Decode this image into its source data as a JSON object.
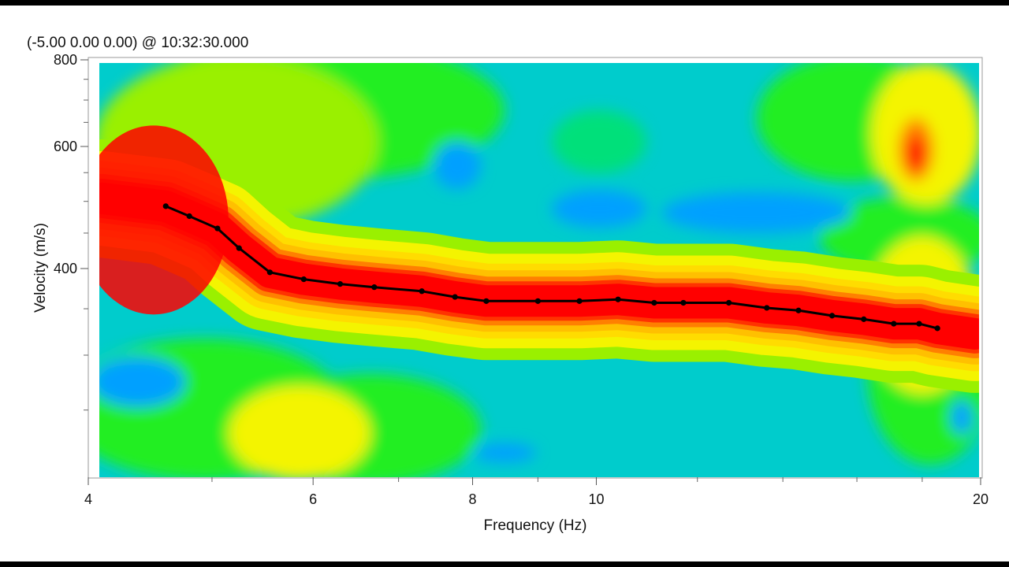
{
  "header": {
    "readout": "(-5.00 0.00 0.00) @ 10:32:30.000"
  },
  "chart_data": {
    "type": "heatmap",
    "subtype": "dispersion-image-with-picked-curve",
    "xlabel": "Frequency (Hz)",
    "ylabel": "Velocity (m/s)",
    "x_scale": "log",
    "y_scale": "log",
    "xlim": [
      4,
      20
    ],
    "ylim": [
      200,
      800
    ],
    "x_ticks": [
      {
        "value": 4,
        "label": "4"
      },
      {
        "value": 6,
        "label": "6"
      },
      {
        "value": 8,
        "label": "8"
      },
      {
        "value": 10,
        "label": "10"
      },
      {
        "value": 20,
        "label": "20"
      }
    ],
    "y_ticks": [
      {
        "value": 400,
        "label": "400"
      },
      {
        "value": 600,
        "label": "600"
      },
      {
        "value": 800,
        "label": "800"
      }
    ],
    "colormap": [
      "#00a0ff",
      "#00cccc",
      "#00e07a",
      "#22ee22",
      "#9af000",
      "#f4f400",
      "#ffc000",
      "#ff8000",
      "#ff3300",
      "#ff0000"
    ],
    "high_energy_color": "#ff0000",
    "low_energy_color": "#00a0ff",
    "picked_curve": {
      "color": "#000000",
      "points": [
        {
          "x": 4.6,
          "y": 492
        },
        {
          "x": 4.8,
          "y": 476
        },
        {
          "x": 5.05,
          "y": 457
        },
        {
          "x": 5.25,
          "y": 428
        },
        {
          "x": 5.55,
          "y": 395
        },
        {
          "x": 5.9,
          "y": 386
        },
        {
          "x": 6.3,
          "y": 380
        },
        {
          "x": 6.7,
          "y": 376
        },
        {
          "x": 7.3,
          "y": 371
        },
        {
          "x": 7.75,
          "y": 364
        },
        {
          "x": 8.2,
          "y": 359
        },
        {
          "x": 9.0,
          "y": 359
        },
        {
          "x": 9.7,
          "y": 359
        },
        {
          "x": 10.4,
          "y": 361
        },
        {
          "x": 11.1,
          "y": 357
        },
        {
          "x": 11.7,
          "y": 357
        },
        {
          "x": 12.7,
          "y": 357
        },
        {
          "x": 13.6,
          "y": 351
        },
        {
          "x": 14.4,
          "y": 348
        },
        {
          "x": 15.3,
          "y": 342
        },
        {
          "x": 16.2,
          "y": 338
        },
        {
          "x": 17.1,
          "y": 333
        },
        {
          "x": 17.9,
          "y": 333
        },
        {
          "x": 18.5,
          "y": 328
        }
      ]
    }
  }
}
